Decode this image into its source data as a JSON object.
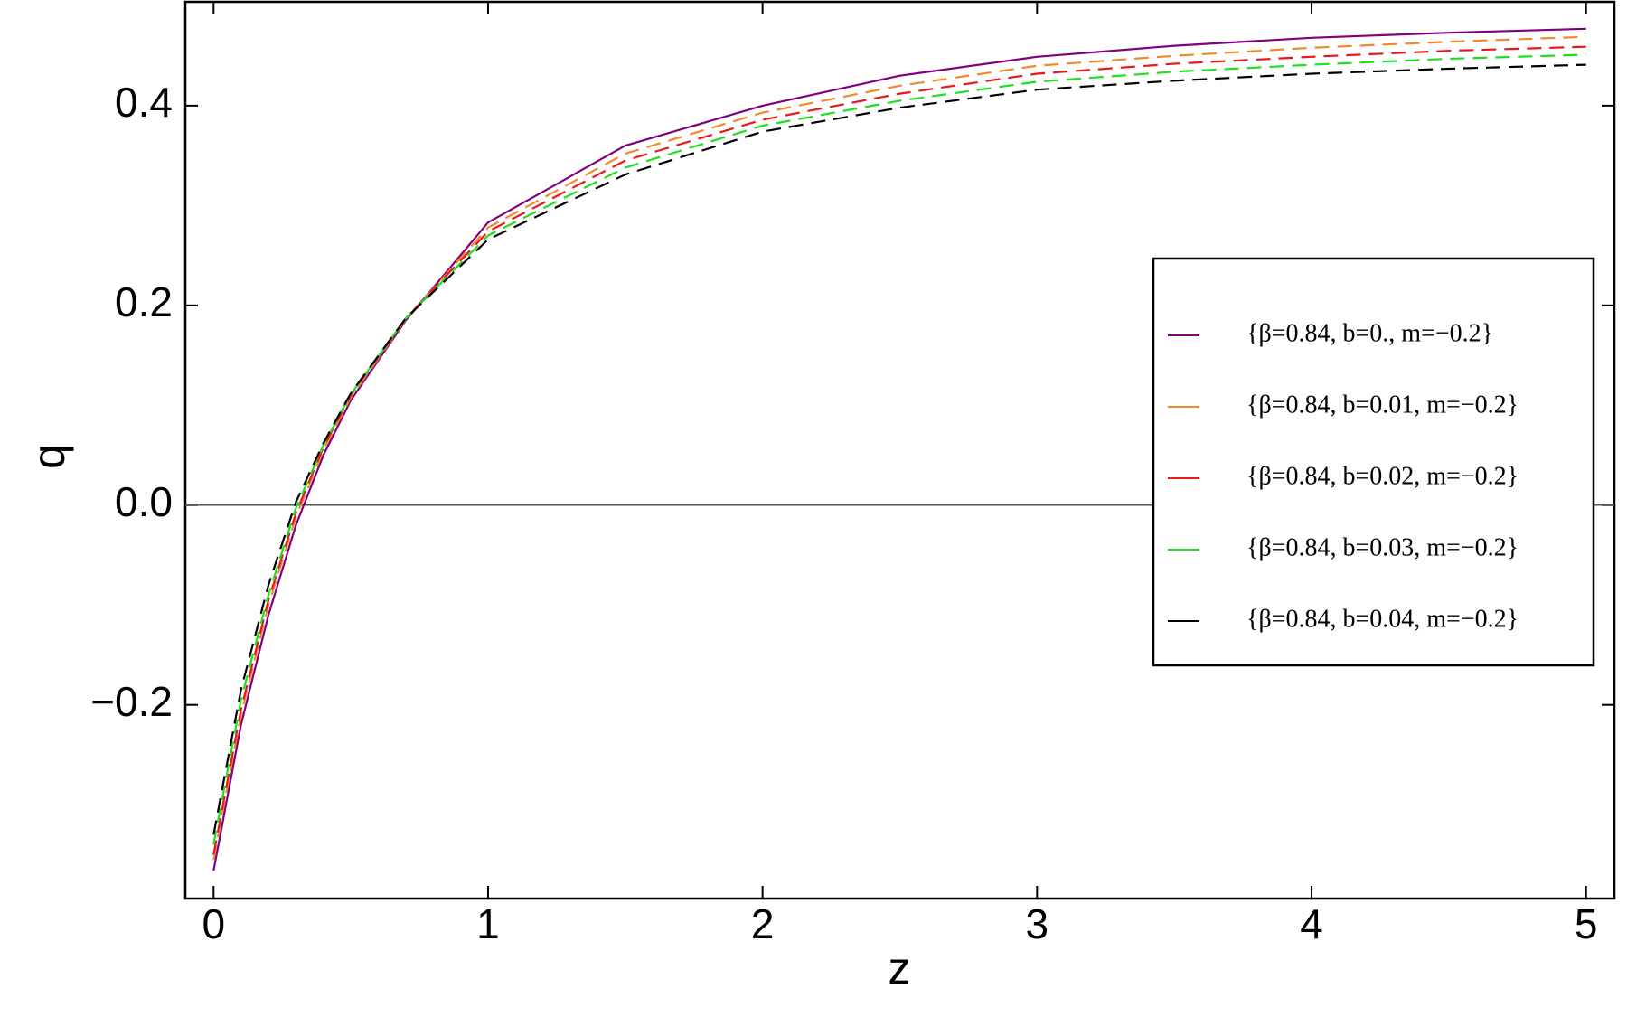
{
  "chart_data": {
    "type": "line",
    "xlabel": "z",
    "ylabel": "q",
    "x": [
      0,
      0.1,
      0.2,
      0.3,
      0.4,
      0.5,
      0.7,
      1,
      1.5,
      2,
      2.5,
      3,
      3.5,
      4,
      4.5,
      5
    ],
    "series": [
      {
        "name": "{β=0.84, b=0., m=−0.2}",
        "color": "#800080",
        "dashed": false,
        "values": [
          -0.366,
          -0.22,
          -0.11,
          -0.02,
          0.05,
          0.105,
          0.185,
          0.283,
          0.36,
          0.4,
          0.43,
          0.449,
          0.46,
          0.468,
          0.473,
          0.477
        ]
      },
      {
        "name": "{β=0.84, b=0.01, m=−0.2}",
        "color": "#ee8c2c",
        "dashed": true,
        "values": [
          -0.355,
          -0.21,
          -0.1,
          -0.012,
          0.055,
          0.108,
          0.186,
          0.278,
          0.352,
          0.393,
          0.42,
          0.44,
          0.45,
          0.458,
          0.464,
          0.469
        ]
      },
      {
        "name": "{β=0.84, b=0.02, m=−0.2}",
        "color": "#e8191a",
        "dashed": true,
        "values": [
          -0.35,
          -0.205,
          -0.095,
          -0.008,
          0.058,
          0.11,
          0.187,
          0.274,
          0.345,
          0.386,
          0.412,
          0.432,
          0.442,
          0.449,
          0.455,
          0.459
        ]
      },
      {
        "name": "{β=0.84, b=0.03, m=−0.2}",
        "color": "#22dd22",
        "dashed": true,
        "values": [
          -0.34,
          -0.195,
          -0.09,
          -0.003,
          0.06,
          0.111,
          0.187,
          0.27,
          0.338,
          0.38,
          0.405,
          0.424,
          0.434,
          0.441,
          0.447,
          0.451
        ]
      },
      {
        "name": "{β=0.84, b=0.04, m=−0.2}",
        "color": "#000000",
        "dashed": true,
        "values": [
          -0.33,
          -0.185,
          -0.08,
          0.003,
          0.062,
          0.112,
          0.187,
          0.266,
          0.331,
          0.374,
          0.398,
          0.416,
          0.425,
          0.432,
          0.437,
          0.441
        ]
      }
    ],
    "xlim": [
      -0.103,
      5.103
    ],
    "ylim": [
      -0.394,
      0.504
    ],
    "xticks": [
      0,
      1,
      2,
      3,
      4,
      5
    ],
    "yticks": [
      {
        "value": -0.2,
        "label": "−0.2"
      },
      {
        "value": 0,
        "label": "0.0"
      },
      {
        "value": 0.2,
        "label": "0.2"
      },
      {
        "value": 0.4,
        "label": "0.4"
      }
    ],
    "zero_line": true,
    "legend": "right"
  }
}
